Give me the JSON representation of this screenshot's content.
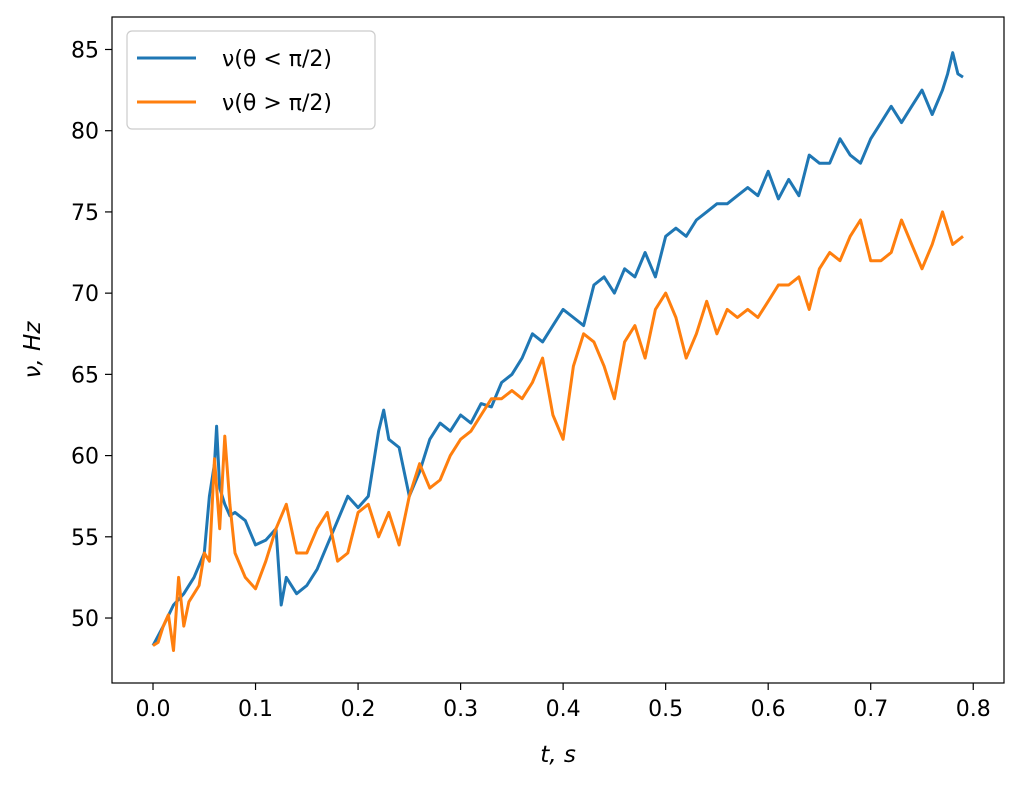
{
  "chart_data": {
    "type": "line",
    "xlabel": "t, s",
    "ylabel": "ν, Hz",
    "xlim": [
      -0.04,
      0.83
    ],
    "ylim": [
      46.0,
      87.0
    ],
    "xticks": [
      0.0,
      0.1,
      0.2,
      0.3,
      0.4,
      0.5,
      0.6,
      0.7,
      0.8
    ],
    "xtick_labels": [
      "0.0",
      "0.1",
      "0.2",
      "0.3",
      "0.4",
      "0.5",
      "0.6",
      "0.7",
      "0.8"
    ],
    "yticks": [
      50,
      55,
      60,
      65,
      70,
      75,
      80,
      85
    ],
    "ytick_labels": [
      "50",
      "55",
      "60",
      "65",
      "70",
      "75",
      "80",
      "85"
    ],
    "grid": false,
    "legend_position": "upper-left",
    "series": [
      {
        "name": "ν(θ < π/2)",
        "color": "#1f77b4",
        "x": [
          0.0,
          0.01,
          0.02,
          0.03,
          0.04,
          0.05,
          0.055,
          0.06,
          0.062,
          0.065,
          0.07,
          0.075,
          0.08,
          0.09,
          0.1,
          0.11,
          0.12,
          0.125,
          0.13,
          0.14,
          0.15,
          0.16,
          0.17,
          0.18,
          0.19,
          0.2,
          0.21,
          0.22,
          0.225,
          0.23,
          0.24,
          0.25,
          0.26,
          0.27,
          0.28,
          0.29,
          0.3,
          0.31,
          0.32,
          0.33,
          0.34,
          0.35,
          0.36,
          0.37,
          0.38,
          0.39,
          0.4,
          0.41,
          0.42,
          0.43,
          0.44,
          0.45,
          0.46,
          0.47,
          0.48,
          0.49,
          0.5,
          0.51,
          0.52,
          0.53,
          0.54,
          0.55,
          0.56,
          0.57,
          0.58,
          0.59,
          0.6,
          0.61,
          0.62,
          0.63,
          0.64,
          0.65,
          0.66,
          0.67,
          0.68,
          0.69,
          0.7,
          0.71,
          0.72,
          0.73,
          0.74,
          0.75,
          0.76,
          0.77,
          0.775,
          0.78,
          0.785,
          0.79
        ],
        "y": [
          48.3,
          49.5,
          50.8,
          51.5,
          52.5,
          54.0,
          57.5,
          59.5,
          61.8,
          58.0,
          57.0,
          56.3,
          56.5,
          56.0,
          54.5,
          54.8,
          55.5,
          50.8,
          52.5,
          51.5,
          52.0,
          53.0,
          54.5,
          56.0,
          57.5,
          56.8,
          57.5,
          61.5,
          62.8,
          61.0,
          60.5,
          57.5,
          59.0,
          61.0,
          62.0,
          61.5,
          62.5,
          62.0,
          63.2,
          63.0,
          64.5,
          65.0,
          66.0,
          67.5,
          67.0,
          68.0,
          69.0,
          68.5,
          68.0,
          70.5,
          71.0,
          70.0,
          71.5,
          71.0,
          72.5,
          71.0,
          73.5,
          74.0,
          73.5,
          74.5,
          75.0,
          75.5,
          75.5,
          76.0,
          76.5,
          76.0,
          77.5,
          75.8,
          77.0,
          76.0,
          78.5,
          78.0,
          78.0,
          79.5,
          78.5,
          78.0,
          79.5,
          80.5,
          81.5,
          80.5,
          81.5,
          82.5,
          81.0,
          82.5,
          83.5,
          84.8,
          83.5,
          83.3
        ]
      },
      {
        "name": "ν(θ > π/2)",
        "color": "#ff7f0e",
        "x": [
          0.0,
          0.005,
          0.01,
          0.015,
          0.02,
          0.025,
          0.03,
          0.035,
          0.04,
          0.045,
          0.05,
          0.055,
          0.06,
          0.065,
          0.07,
          0.075,
          0.08,
          0.09,
          0.1,
          0.11,
          0.12,
          0.13,
          0.14,
          0.15,
          0.16,
          0.17,
          0.18,
          0.19,
          0.2,
          0.21,
          0.22,
          0.23,
          0.24,
          0.25,
          0.26,
          0.27,
          0.28,
          0.29,
          0.3,
          0.31,
          0.32,
          0.33,
          0.34,
          0.35,
          0.36,
          0.37,
          0.38,
          0.39,
          0.4,
          0.41,
          0.42,
          0.43,
          0.44,
          0.45,
          0.46,
          0.47,
          0.48,
          0.49,
          0.5,
          0.51,
          0.52,
          0.53,
          0.54,
          0.55,
          0.56,
          0.57,
          0.58,
          0.59,
          0.6,
          0.61,
          0.62,
          0.63,
          0.64,
          0.65,
          0.66,
          0.67,
          0.68,
          0.69,
          0.7,
          0.71,
          0.72,
          0.73,
          0.74,
          0.75,
          0.76,
          0.77,
          0.78,
          0.79
        ],
        "y": [
          48.3,
          48.5,
          49.5,
          50.2,
          48.0,
          52.5,
          49.5,
          51.0,
          51.5,
          52.0,
          54.0,
          53.5,
          59.8,
          55.5,
          61.2,
          57.0,
          54.0,
          52.5,
          51.8,
          53.5,
          55.5,
          57.0,
          54.0,
          54.0,
          55.5,
          56.5,
          53.5,
          54.0,
          56.5,
          57.0,
          55.0,
          56.5,
          54.5,
          57.5,
          59.5,
          58.0,
          58.5,
          60.0,
          61.0,
          61.5,
          62.5,
          63.5,
          63.5,
          64.0,
          63.5,
          64.5,
          66.0,
          62.5,
          61.0,
          65.5,
          67.5,
          67.0,
          65.5,
          63.5,
          67.0,
          68.0,
          66.0,
          69.0,
          70.0,
          68.5,
          66.0,
          67.5,
          69.5,
          67.5,
          69.0,
          68.5,
          69.0,
          68.5,
          69.5,
          70.5,
          70.5,
          71.0,
          69.0,
          71.5,
          72.5,
          72.0,
          73.5,
          74.5,
          72.0,
          72.0,
          72.5,
          74.5,
          73.0,
          71.5,
          73.0,
          75.0,
          73.0,
          73.5
        ]
      }
    ]
  }
}
